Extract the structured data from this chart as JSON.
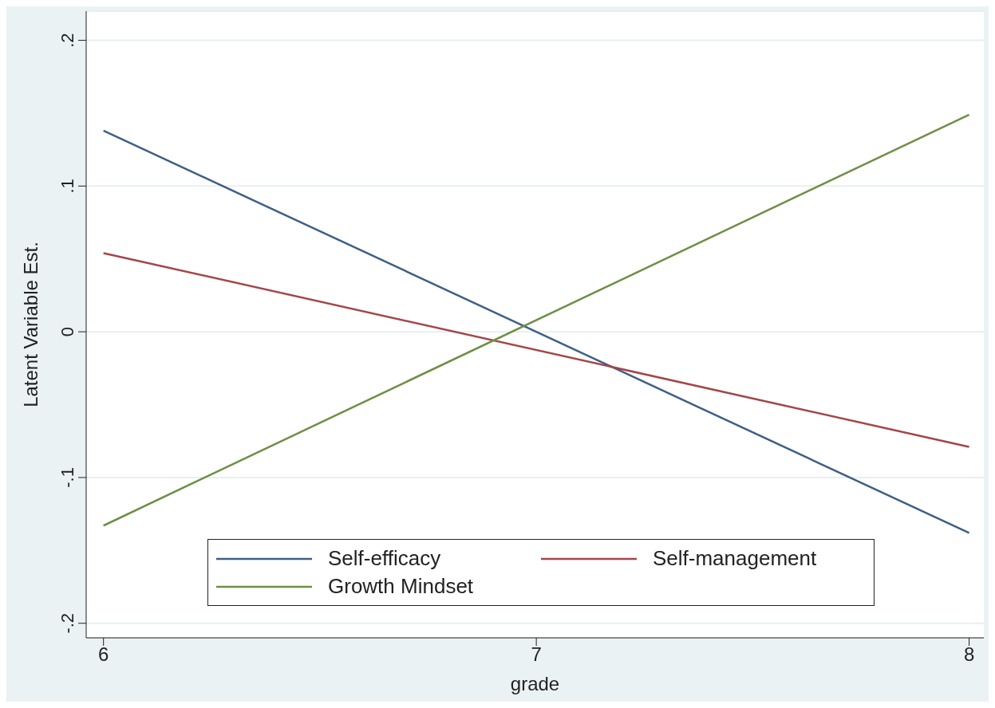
{
  "chart_data": {
    "type": "line",
    "xlabel": "grade",
    "ylabel": "Latent Variable Est.",
    "x": [
      6,
      8
    ],
    "series": [
      {
        "name": "Self-efficacy",
        "color": "#3e5f85",
        "values": [
          0.138,
          -0.138
        ]
      },
      {
        "name": "Self-management",
        "color": "#a4454a",
        "values": [
          0.054,
          -0.079
        ]
      },
      {
        "name": "Growth Mindset",
        "color": "#6e8f45",
        "values": [
          -0.133,
          0.149
        ]
      }
    ],
    "xlim": [
      5.96,
      8.034
    ],
    "xticks": [
      6,
      7,
      8
    ],
    "ylim": [
      -0.21,
      0.22
    ],
    "yticks": [
      {
        "value": -0.2,
        "label": "-.2"
      },
      {
        "value": -0.1,
        "label": "-.1"
      },
      {
        "value": 0,
        "label": "0"
      },
      {
        "value": 0.1,
        "label": ".1"
      },
      {
        "value": 0.2,
        "label": ".2"
      }
    ],
    "grid": "y",
    "legend": "bottom",
    "marker": "none",
    "line_style": "solid"
  }
}
